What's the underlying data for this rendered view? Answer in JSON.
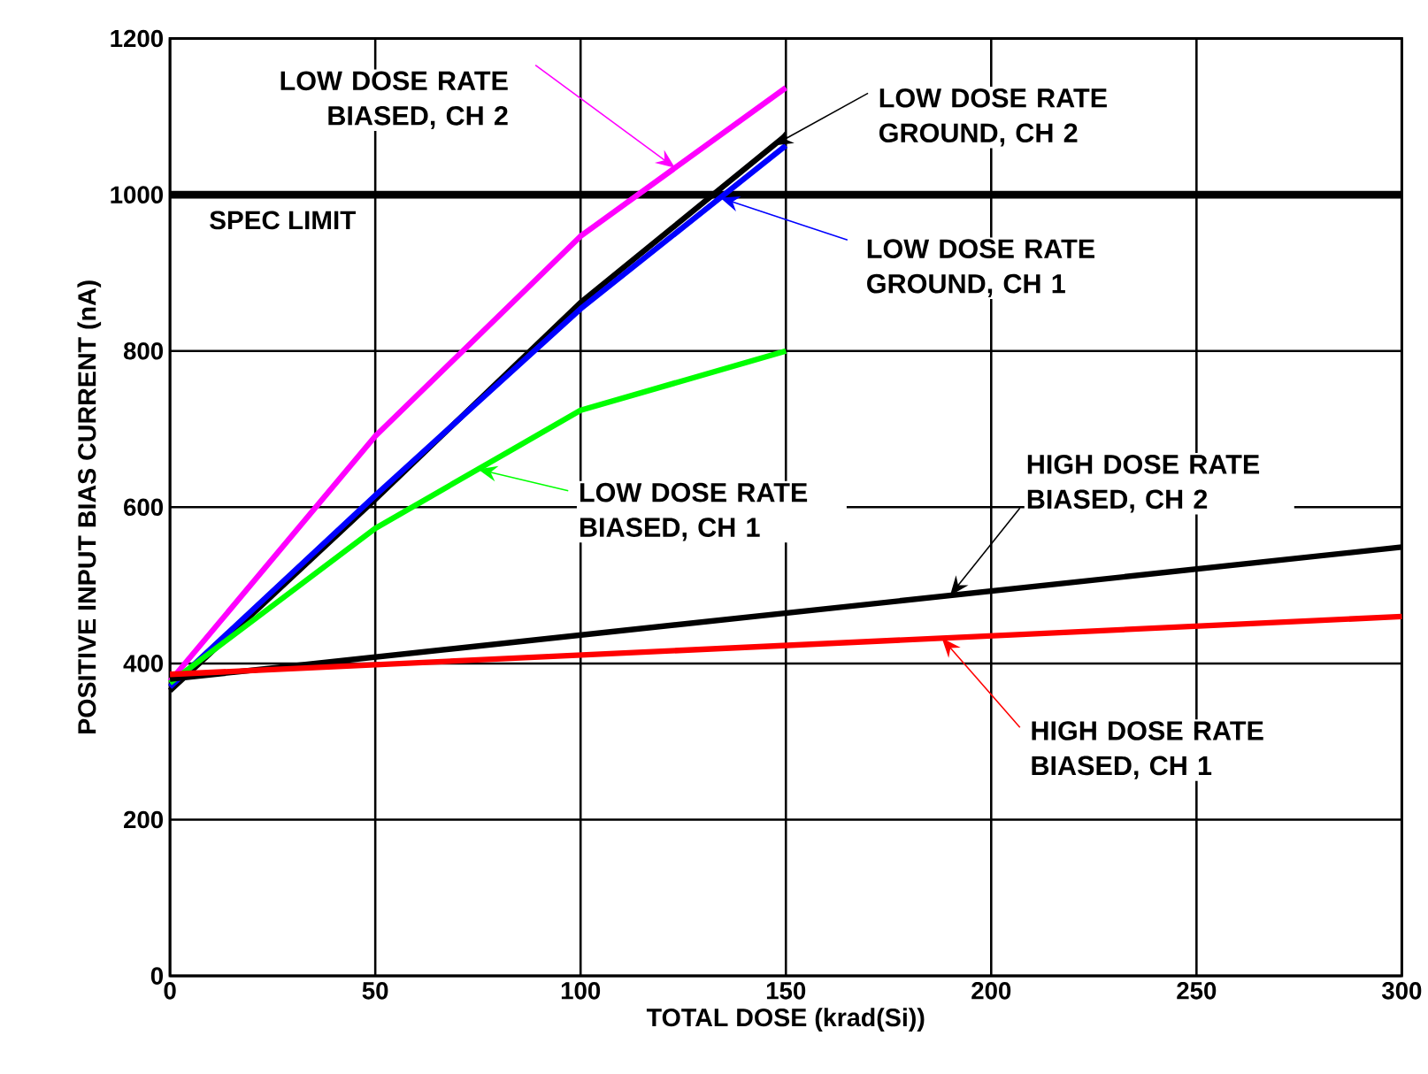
{
  "chart_data": {
    "type": "line",
    "xlabel": "TOTAL DOSE (krad(Si))",
    "ylabel": "POSITIVE INPUT BIAS CURRENT (nA)",
    "xlim": [
      0,
      300
    ],
    "xticks": [
      0,
      50,
      100,
      150,
      200,
      250,
      300
    ],
    "ylim": [
      0,
      1200
    ],
    "yticks": [
      0,
      200,
      400,
      600,
      800,
      1000,
      1200
    ],
    "grid": true,
    "marker": "none",
    "line_style": "solid",
    "ref_lines": [
      {
        "axis": "y",
        "value": 1000,
        "label": "SPEC LIMIT",
        "color": "#000000"
      }
    ],
    "series": [
      {
        "name": "LOW DOSE RATE BIASED, CH 2",
        "color": "#ff00ff",
        "x": [
          0,
          50,
          100,
          150
        ],
        "values": [
          377,
          691,
          947,
          1137
        ]
      },
      {
        "name": "LOW DOSE RATE GROUND, CH 2",
        "color": "#000000",
        "x": [
          0,
          50,
          100,
          150
        ],
        "values": [
          365,
          610,
          862,
          1076
        ]
      },
      {
        "name": "LOW DOSE RATE GROUND, CH 1",
        "color": "#0000ff",
        "x": [
          0,
          50,
          100,
          150
        ],
        "values": [
          370,
          615,
          854,
          1063
        ]
      },
      {
        "name": "LOW DOSE RATE BIASED, CH 1",
        "color": "#00ff00",
        "x": [
          0,
          50,
          100,
          150
        ],
        "values": [
          375,
          573,
          724,
          800
        ]
      },
      {
        "name": "HIGH DOSE RATE BIASED, CH 2",
        "color": "#000000",
        "x": [
          0,
          300
        ],
        "values": [
          380,
          549
        ]
      },
      {
        "name": "HIGH DOSE RATE BIASED, CH 1",
        "color": "#ff0000",
        "x": [
          0,
          300
        ],
        "values": [
          386,
          460
        ]
      }
    ]
  }
}
